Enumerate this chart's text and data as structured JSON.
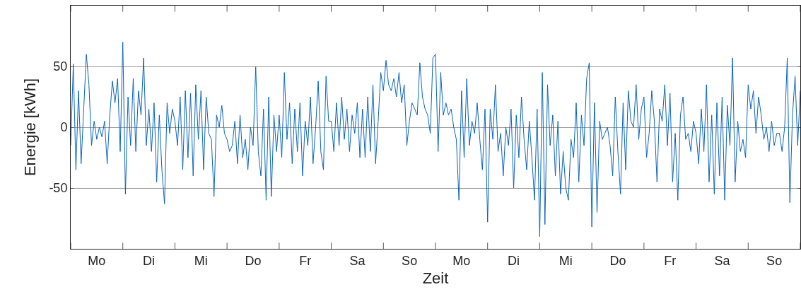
{
  "chart_data": {
    "type": "line",
    "xlabel": "Zeit",
    "ylabel": "Energie [kWh]",
    "ylim": [
      -100,
      100
    ],
    "yticks": [
      -50,
      0,
      50
    ],
    "categories": [
      null,
      null,
      null,
      null,
      null,
      null,
      null,
      null,
      null,
      null,
      "Mo",
      null,
      null,
      null,
      null,
      null,
      null,
      null,
      null,
      null,
      null,
      null,
      null,
      null,
      null,
      null,
      null,
      null,
      null,
      null,
      "Di",
      null,
      null,
      null,
      null,
      null,
      null,
      null,
      null,
      null,
      null,
      null,
      null,
      null,
      null,
      null,
      null,
      null,
      null,
      null,
      "Mi",
      null,
      null,
      null,
      null,
      null,
      null,
      null,
      null,
      null,
      null,
      null,
      null,
      null,
      null,
      null,
      null,
      null,
      null,
      null,
      "Do",
      null,
      null,
      null,
      null,
      null,
      null,
      null,
      null,
      null,
      null,
      null,
      null,
      null,
      null,
      null,
      null,
      null,
      null,
      null,
      "Fr",
      null,
      null,
      null,
      null,
      null,
      null,
      null,
      null,
      null,
      null,
      null,
      null,
      null,
      null,
      null,
      null,
      null,
      null,
      null,
      "Sa",
      null,
      null,
      null,
      null,
      null,
      null,
      null,
      null,
      null,
      null,
      null,
      null,
      null,
      null,
      null,
      null,
      null,
      null,
      null,
      "So",
      null,
      null,
      null,
      null,
      null,
      null,
      null,
      null,
      null,
      null,
      null,
      null,
      null,
      null,
      null,
      null,
      null,
      null,
      null,
      "Mo",
      null,
      null,
      null,
      null,
      null,
      null,
      null,
      null,
      null,
      null,
      null,
      null,
      null,
      null,
      null,
      null,
      null,
      null,
      null,
      "Di",
      null,
      null,
      null,
      null,
      null,
      null,
      null,
      null,
      null,
      null,
      null,
      null,
      null,
      null,
      null,
      null,
      null,
      null,
      null,
      "Mi",
      null,
      null,
      null,
      null,
      null,
      null,
      null,
      null,
      null,
      null,
      null,
      null,
      null,
      null,
      null,
      null,
      null,
      null,
      null,
      "Do",
      null,
      null,
      null,
      null,
      null,
      null,
      null,
      null,
      null,
      null,
      null,
      null,
      null,
      null,
      null,
      null,
      null,
      null,
      null,
      "Fr",
      null,
      null,
      null,
      null,
      null,
      null,
      null,
      null,
      null,
      null,
      null,
      null,
      null,
      null,
      null,
      null,
      null,
      null,
      null,
      "Sa",
      null,
      null,
      null,
      null,
      null,
      null,
      null,
      null,
      null,
      null,
      null,
      null,
      null,
      null,
      null,
      null,
      null,
      null,
      null,
      "So",
      null,
      null,
      null,
      null,
      null,
      null,
      null,
      null,
      null,
      null
    ],
    "grid": "y",
    "marker": "none",
    "line_style": "solid",
    "series": [
      {
        "color": "#0a64c0",
        "values": [
          -15,
          52,
          -35,
          30,
          -30,
          15,
          60,
          35,
          -15,
          5,
          -10,
          0,
          -8,
          5,
          -30,
          10,
          38,
          20,
          40,
          -20,
          70,
          -55,
          25,
          -15,
          40,
          -20,
          30,
          10,
          57,
          -15,
          15,
          -20,
          20,
          -45,
          10,
          -35,
          -63,
          20,
          -5,
          15,
          5,
          -15,
          25,
          -35,
          30,
          -25,
          28,
          -40,
          35,
          -10,
          30,
          -35,
          25,
          -5,
          -10,
          -57,
          10,
          0,
          18,
          -5,
          -10,
          -20,
          -15,
          5,
          -30,
          10,
          -25,
          -10,
          -35,
          0,
          -15,
          50,
          -20,
          -40,
          15,
          -60,
          25,
          -57,
          10,
          -20,
          10,
          -25,
          45,
          -10,
          20,
          -30,
          15,
          -20,
          20,
          -40,
          5,
          -15,
          25,
          -30,
          0,
          38,
          -20,
          -35,
          42,
          5,
          5,
          -20,
          20,
          -15,
          25,
          -10,
          15,
          -20,
          10,
          -5,
          20,
          -25,
          15,
          -25,
          25,
          -20,
          35,
          -30,
          5,
          45,
          30,
          55,
          35,
          30,
          40,
          25,
          45,
          20,
          35,
          -15,
          5,
          20,
          15,
          10,
          53,
          25,
          15,
          10,
          -5,
          57,
          60,
          -20,
          45,
          10,
          20,
          10,
          15,
          0,
          -10,
          -60,
          30,
          -25,
          40,
          -15,
          5,
          -5,
          20,
          -10,
          -35,
          15,
          -78,
          15,
          -10,
          35,
          -20,
          -5,
          -40,
          0,
          -15,
          15,
          -50,
          10,
          -25,
          25,
          -10,
          -35,
          5,
          -25,
          -60,
          15,
          -90,
          45,
          -80,
          35,
          -15,
          10,
          -40,
          5,
          -55,
          -20,
          -50,
          -60,
          -10,
          -25,
          20,
          -45,
          10,
          -15,
          40,
          53,
          -82,
          20,
          -70,
          5,
          -10,
          -5,
          0,
          -15,
          -40,
          25,
          -20,
          -55,
          20,
          -35,
          30,
          5,
          0,
          35,
          -10,
          15,
          25,
          -25,
          -5,
          30,
          5,
          -45,
          15,
          5,
          35,
          -15,
          28,
          -45,
          -5,
          -60,
          10,
          25,
          -10,
          -5,
          -20,
          5,
          -5,
          -30,
          15,
          -20,
          35,
          -45,
          10,
          -55,
          20,
          -40,
          25,
          -60,
          18,
          -15,
          57,
          -45,
          5,
          -20,
          -10,
          -25,
          35,
          15,
          30,
          -5,
          25,
          10,
          -10,
          0,
          -20,
          5,
          -15,
          -5,
          -5,
          -20,
          0,
          57,
          -62,
          10,
          42,
          -15,
          30
        ]
      }
    ]
  }
}
